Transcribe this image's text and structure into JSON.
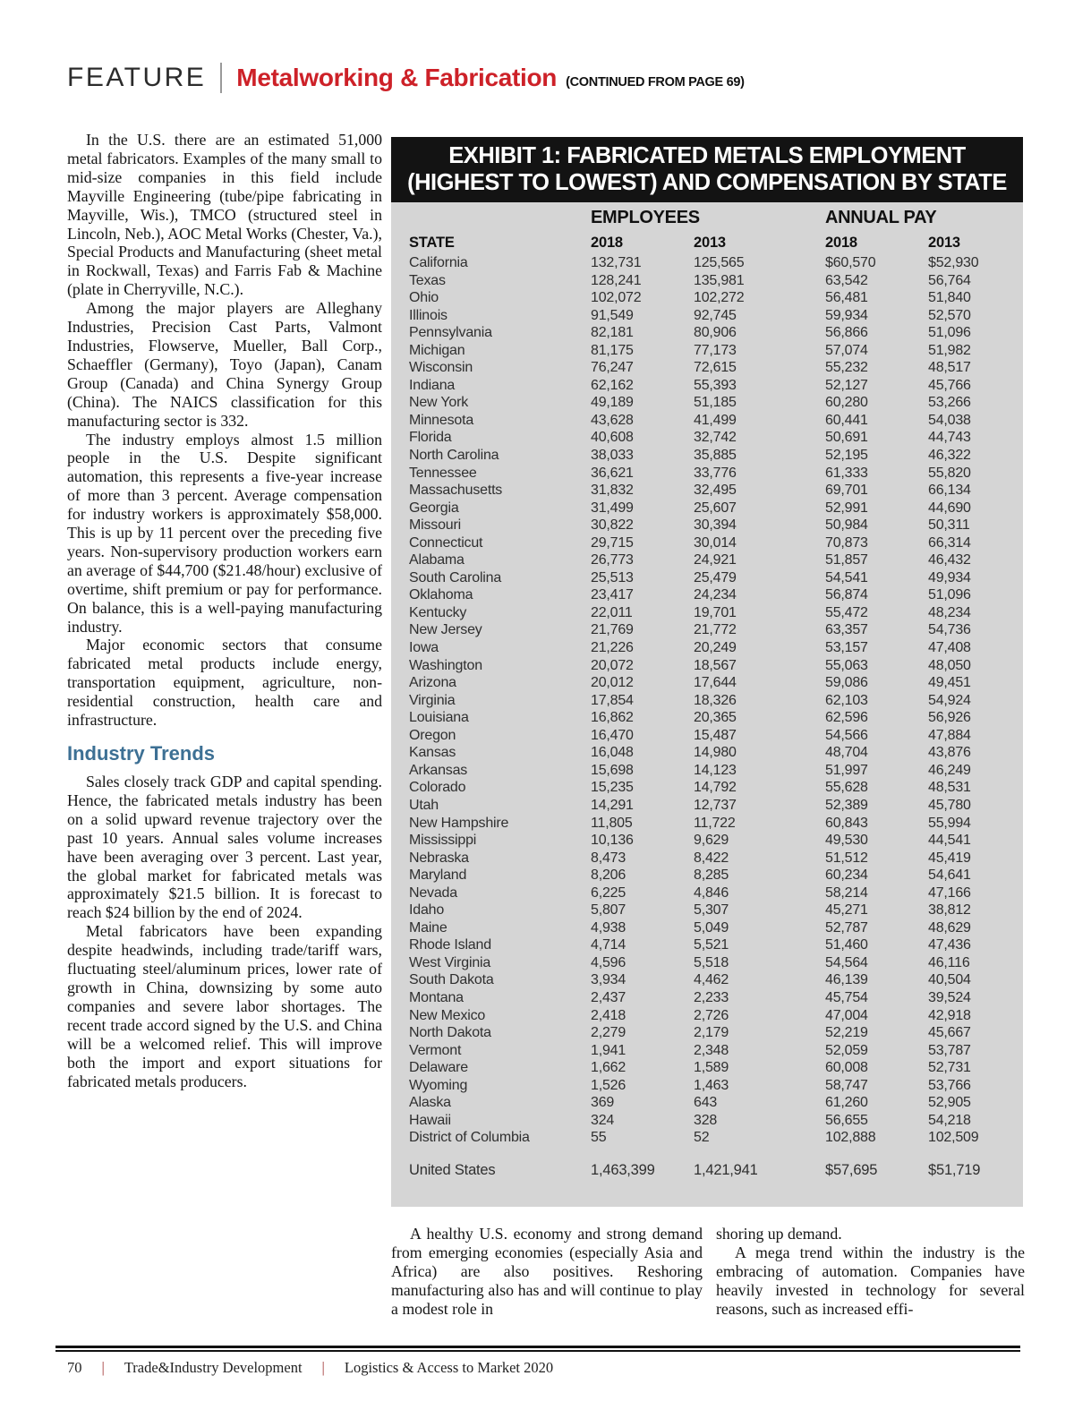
{
  "header": {
    "feature": "FEATURE",
    "title": "Metalworking & Fabrication",
    "continued": "(CONTINUED FROM PAGE 69)"
  },
  "colors": {
    "accent_red": "#cd2128",
    "heading_blue": "#3d7094",
    "table_bg": "#d5d5d5",
    "banner_bg": "#131313",
    "footer_sep": "#a03535"
  },
  "article": {
    "paragraphs_top": [
      "In the U.S. there are an estimated 51,000 metal fabricators. Examples of the many small to mid-size companies in this field include Mayville Engineering (tube/pipe fabricating in Mayville, Wis.), TMCO (structured steel in Lincoln, Neb.), AOC Metal Works (Chester, Va.), Special Products and Manufacturing (sheet metal in Rockwall, Texas) and Farris Fab & Machine (plate in Cherryville, N.C.).",
      "Among the major players are Alleghany Industries, Precision Cast Parts, Valmont Industries, Flowserve, Mueller, Ball Corp., Schaeffler (Germany), Toyo (Japan), Canam Group (Canada) and China Synergy Group (China). The NAICS classification for this manufacturing sector is 332.",
      "The industry employs almost 1.5 million people in the U.S. Despite significant automation, this represents a five-year increase of more than 3 percent. Average compensation for industry workers is approximately $58,000. This is up by 11 percent over the preceding five years. Non-supervisory production workers earn an average of $44,700 ($21.48/hour) exclusive of overtime, shift premium or pay for performance. On balance, this is a well-paying manufacturing industry.",
      "Major economic sectors that consume fabricated metal products include energy, transportation equipment, agriculture, non-residential construction, health care and infrastructure."
    ],
    "section_heading": "Industry Trends",
    "paragraphs_trends": [
      "Sales closely track GDP and capital spending. Hence, the fabricated metals industry has been on a solid upward revenue trajectory over the past 10 years. Annual sales volume increases have been averaging over 3 percent. Last year, the global market for fabricated metals was approximately $21.5 billion. It is forecast to reach $24 billion by the end of 2024.",
      "Metal fabricators have been expanding despite headwinds, including trade/tariff wars, fluctuating steel/aluminum prices, lower rate of growth in China, downsizing by some auto companies and severe labor shortages. The recent trade accord signed by the U.S. and China will be a welcomed relief. This will improve both the import and export situations for fabricated metals producers."
    ],
    "bottom_middle": [
      "A healthy U.S. economy and strong demand from emerging economies (especially Asia and Africa) are also positives. Reshoring manufacturing also has and will continue to play a modest role in"
    ],
    "bottom_right": [
      "shoring up demand.",
      "A mega trend within the industry is the embracing of automation. Companies have heavily invested in technology for several reasons, such as increased effi-"
    ]
  },
  "exhibit": {
    "title_line1": "EXHIBIT 1: FABRICATED METALS EMPLOYMENT",
    "title_line2": "(HIGHEST TO LOWEST) AND COMPENSATION BY STATE",
    "group_headers": {
      "employees": "EMPLOYEES",
      "annual_pay": "ANNUAL PAY"
    },
    "columns": [
      "STATE",
      "2018",
      "2013",
      "2018",
      "2013"
    ],
    "rows": [
      [
        "California",
        "132,731",
        "125,565",
        "$60,570",
        "$52,930"
      ],
      [
        "Texas",
        "128,241",
        "135,981",
        "63,542",
        "56,764"
      ],
      [
        "Ohio",
        "102,072",
        "102,272",
        "56,481",
        "51,840"
      ],
      [
        "Illinois",
        "91,549",
        "92,745",
        "59,934",
        "52,570"
      ],
      [
        "Pennsylvania",
        "82,181",
        "80,906",
        "56,866",
        "51,096"
      ],
      [
        "Michigan",
        "81,175",
        "77,173",
        "57,074",
        "51,982"
      ],
      [
        "Wisconsin",
        "76,247",
        "72,615",
        "55,232",
        "48,517"
      ],
      [
        "Indiana",
        "62,162",
        "55,393",
        "52,127",
        "45,766"
      ],
      [
        "New York",
        "49,189",
        "51,185",
        "60,280",
        "53,266"
      ],
      [
        "Minnesota",
        "43,628",
        "41,499",
        "60,441",
        "54,038"
      ],
      [
        "Florida",
        "40,608",
        "32,742",
        "50,691",
        "44,743"
      ],
      [
        "North Carolina",
        "38,033",
        "35,885",
        "52,195",
        "46,322"
      ],
      [
        "Tennessee",
        "36,621",
        "33,776",
        "61,333",
        "55,820"
      ],
      [
        "Massachusetts",
        "31,832",
        "32,495",
        "69,701",
        "66,134"
      ],
      [
        "Georgia",
        "31,499",
        "25,607",
        "52,991",
        "44,690"
      ],
      [
        "Missouri",
        "30,822",
        "30,394",
        "50,984",
        "50,311"
      ],
      [
        "Connecticut",
        "29,715",
        "30,014",
        "70,873",
        "66,314"
      ],
      [
        "Alabama",
        "26,773",
        "24,921",
        "51,857",
        "46,432"
      ],
      [
        "South Carolina",
        "25,513",
        "25,479",
        "54,541",
        "49,934"
      ],
      [
        "Oklahoma",
        "23,417",
        "24,234",
        "56,874",
        "51,096"
      ],
      [
        "Kentucky",
        "22,011",
        "19,701",
        "55,472",
        "48,234"
      ],
      [
        "New Jersey",
        "21,769",
        "21,772",
        "63,357",
        "54,736"
      ],
      [
        "Iowa",
        "21,226",
        "20,249",
        "53,157",
        "47,408"
      ],
      [
        "Washington",
        "20,072",
        "18,567",
        "55,063",
        "48,050"
      ],
      [
        "Arizona",
        "20,012",
        "17,644",
        "59,086",
        "49,451"
      ],
      [
        "Virginia",
        "17,854",
        "18,326",
        "62,103",
        "54,924"
      ],
      [
        "Louisiana",
        "16,862",
        "20,365",
        "62,596",
        "56,926"
      ],
      [
        "Oregon",
        "16,470",
        "15,487",
        "54,566",
        "47,884"
      ],
      [
        "Kansas",
        "16,048",
        "14,980",
        "48,704",
        "43,876"
      ],
      [
        "Arkansas",
        "15,698",
        "14,123",
        "51,997",
        "46,249"
      ],
      [
        "Colorado",
        "15,235",
        "14,792",
        "55,628",
        "48,531"
      ],
      [
        "Utah",
        "14,291",
        "12,737",
        "52,389",
        "45,780"
      ],
      [
        "New Hampshire",
        "11,805",
        "11,722",
        "60,843",
        "55,994"
      ],
      [
        "Mississippi",
        "10,136",
        "9,629",
        "49,530",
        "44,541"
      ],
      [
        "Nebraska",
        "8,473",
        "8,422",
        "51,512",
        "45,419"
      ],
      [
        "Maryland",
        "8,206",
        "8,285",
        "60,234",
        "54,641"
      ],
      [
        "Nevada",
        "6,225",
        "4,846",
        "58,214",
        "47,166"
      ],
      [
        "Idaho",
        "5,807",
        "5,307",
        "45,271",
        "38,812"
      ],
      [
        "Maine",
        "4,938",
        "5,049",
        "52,787",
        "48,629"
      ],
      [
        "Rhode Island",
        "4,714",
        "5,521",
        "51,460",
        "47,436"
      ],
      [
        "West Virginia",
        "4,596",
        "5,518",
        "54,564",
        "46,116"
      ],
      [
        "South Dakota",
        "3,934",
        "4,462",
        "46,139",
        "40,504"
      ],
      [
        "Montana",
        "2,437",
        "2,233",
        "45,754",
        "39,524"
      ],
      [
        "New Mexico",
        "2,418",
        "2,726",
        "47,004",
        "42,918"
      ],
      [
        "North Dakota",
        "2,279",
        "2,179",
        "52,219",
        "45,667"
      ],
      [
        "Vermont",
        "1,941",
        "2,348",
        "52,059",
        "53,787"
      ],
      [
        "Delaware",
        "1,662",
        "1,589",
        "60,008",
        "52,731"
      ],
      [
        "Wyoming",
        "1,526",
        "1,463",
        "58,747",
        "53,766"
      ],
      [
        "Alaska",
        "369",
        "643",
        "61,260",
        "52,905"
      ],
      [
        "Hawaii",
        "324",
        "328",
        "56,655",
        "54,218"
      ],
      [
        "District of Columbia",
        "55",
        "52",
        "102,888",
        "102,509"
      ]
    ],
    "total_row": [
      "United States",
      "1,463,399",
      "1,421,941",
      "$57,695",
      "$51,719"
    ]
  },
  "footer": {
    "page": "70",
    "publication": "Trade&Industry Development",
    "issue": "Logistics & Access to Market 2020",
    "separator": "|"
  }
}
